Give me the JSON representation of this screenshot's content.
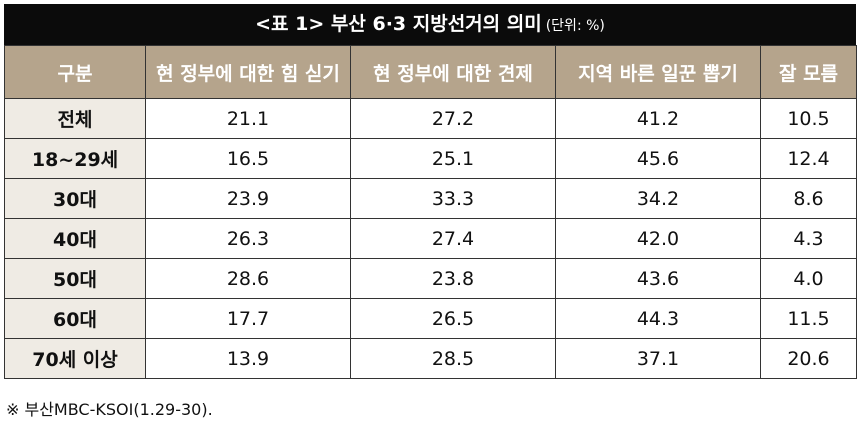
{
  "header": {
    "title": "<표 1> 부산 6·3 지방선거의 의미",
    "unit": "(단위: %)"
  },
  "table": {
    "columns": [
      "구분",
      "현 정부에 대한 힘 싣기",
      "현 정부에 대한 견제",
      "지역 바른 일꾼 뽑기",
      "잘 모름"
    ],
    "rows": [
      [
        "전체",
        "21.1",
        "27.2",
        "41.2",
        "10.5"
      ],
      [
        "18~29세",
        "16.5",
        "25.1",
        "45.6",
        "12.4"
      ],
      [
        "30대",
        "23.9",
        "33.3",
        "34.2",
        "8.6"
      ],
      [
        "40대",
        "26.3",
        "27.4",
        "42.0",
        "4.3"
      ],
      [
        "50대",
        "28.6",
        "23.8",
        "43.6",
        "4.0"
      ],
      [
        "60대",
        "17.7",
        "26.5",
        "44.3",
        "11.5"
      ],
      [
        "70세 이상",
        "13.9",
        "28.5",
        "37.1",
        "20.6"
      ]
    ]
  },
  "footnote": "※ 부산MBC-KSOI(1.29-30)."
}
